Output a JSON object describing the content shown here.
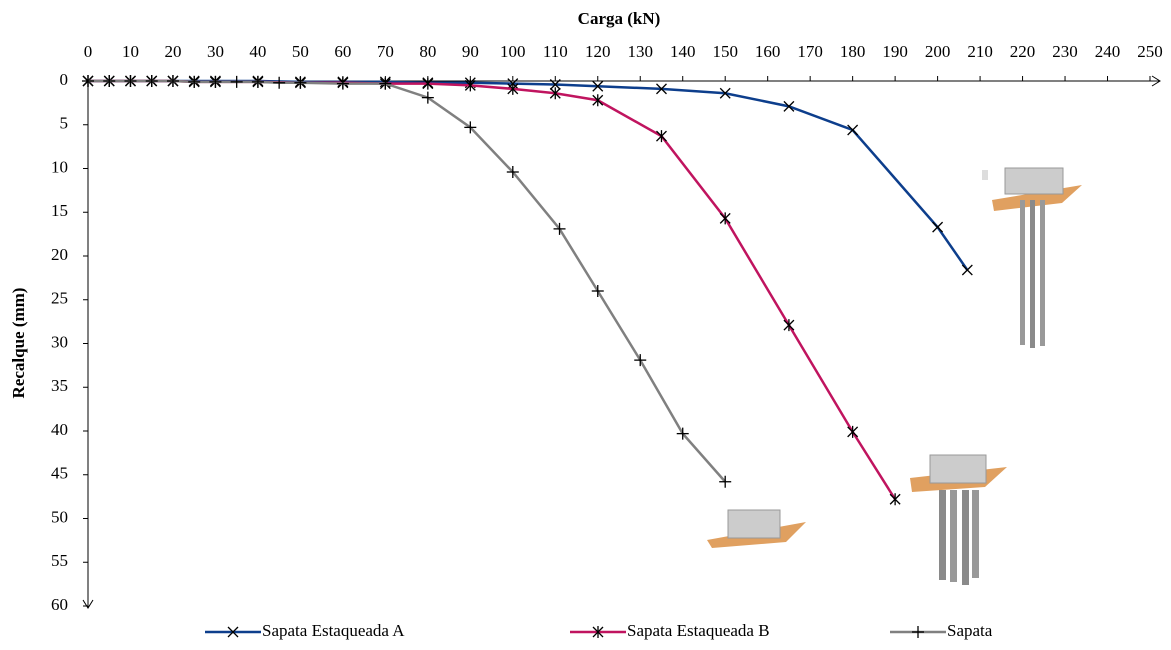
{
  "chart_data": {
    "type": "line",
    "x_label": "Carga (kN)",
    "y_label": "Recalque (mm)",
    "xlim": [
      0,
      250
    ],
    "xticks": [
      0,
      10,
      20,
      30,
      40,
      50,
      60,
      70,
      80,
      90,
      100,
      110,
      120,
      130,
      140,
      150,
      160,
      170,
      180,
      190,
      200,
      210,
      220,
      230,
      240,
      250
    ],
    "ylim": [
      0,
      60
    ],
    "yticks": [
      0,
      5,
      10,
      15,
      20,
      25,
      30,
      35,
      40,
      45,
      50,
      55,
      60
    ],
    "y_inverted": true,
    "x_axis_position": "top",
    "legend": "bottom",
    "series": [
      {
        "name": "Sapata Estaqueada A",
        "color": "#0d3e8c",
        "marker": "x",
        "x": [
          0,
          5,
          10,
          15,
          20,
          25,
          30,
          40,
          50,
          60,
          70,
          80,
          90,
          100,
          110,
          120,
          135,
          150,
          165,
          180,
          200,
          207
        ],
        "values": [
          0,
          0,
          0,
          0,
          0,
          0,
          0,
          0,
          0.1,
          0.1,
          0.1,
          0.2,
          0.2,
          0.3,
          0.4,
          0.6,
          0.9,
          1.4,
          2.9,
          5.6,
          16.7,
          21.6
        ]
      },
      {
        "name": "Sapata Estaqueada B",
        "color": "#c0145f",
        "marker": "asterisk",
        "x": [
          0,
          5,
          10,
          15,
          20,
          25,
          30,
          40,
          50,
          60,
          70,
          80,
          90,
          100,
          110,
          120,
          135,
          150,
          165,
          180,
          190
        ],
        "values": [
          0,
          0,
          0,
          0,
          0,
          0.1,
          0.1,
          0.1,
          0.2,
          0.2,
          0.3,
          0.3,
          0.5,
          0.9,
          1.4,
          2.2,
          6.3,
          15.7,
          27.9,
          40.1,
          47.8
        ]
      },
      {
        "name": "Sapata",
        "color": "#808080",
        "marker": "plus",
        "x": [
          0,
          5,
          10,
          15,
          20,
          25,
          30,
          35,
          40,
          45,
          50,
          60,
          70,
          80,
          90,
          100,
          111,
          120,
          130,
          140,
          150
        ],
        "values": [
          0,
          0,
          0,
          0,
          0,
          0.1,
          0.1,
          0.1,
          0.1,
          0.2,
          0.2,
          0.3,
          0.3,
          1.9,
          5.3,
          10.4,
          16.9,
          24,
          31.9,
          40.3,
          45.8
        ]
      }
    ]
  }
}
